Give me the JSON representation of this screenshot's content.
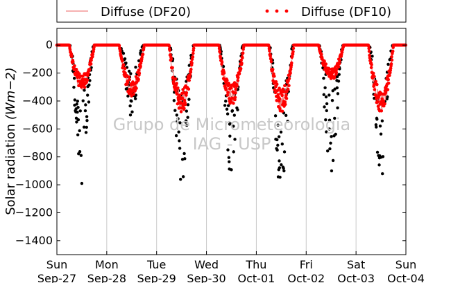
{
  "chart_data": {
    "type": "line",
    "ylabel": "Solar radiation ",
    "ylabel_math": "(Wm−2)",
    "ylim": [
      -1500,
      120
    ],
    "yticks": [
      0,
      -200,
      -400,
      -600,
      -800,
      -1000,
      -1200,
      -1400
    ],
    "ytick_labels": [
      "0",
      "−200",
      "−400",
      "−600",
      "−800",
      "−1000",
      "−1200",
      "−1400"
    ],
    "xlim_days": [
      0,
      7
    ],
    "xtick_days": [
      0,
      1,
      2,
      3,
      4,
      5,
      6,
      7
    ],
    "xtick_labels_top": [
      "Sun",
      "Mon",
      "Tue",
      "Wed",
      "Thu",
      "Fri",
      "Sat",
      "Sun"
    ],
    "xtick_labels_bottom": [
      "Sep-27",
      "Sep-28",
      "Sep-29",
      "Sep-30",
      "Oct-01",
      "Oct-02",
      "Oct-03",
      "Oct-04"
    ],
    "grid": "vertical",
    "legend_position": "top",
    "series": [
      {
        "name": "Diffuse (DF20)",
        "style": "line",
        "color": "#f08080"
      },
      {
        "name": "Diffuse (DF10)",
        "style": "dots",
        "color": "#ff0000"
      }
    ],
    "watermark": [
      "Grupo de Micrometeorologia",
      "IAG - USP"
    ],
    "daily_profile": [
      {
        "day": 0,
        "diffuse_peak": -280,
        "total_peak": -990
      },
      {
        "day": 1,
        "diffuse_peak": -320,
        "total_peak": -500
      },
      {
        "day": 2,
        "diffuse_peak": -420,
        "total_peak": -1005
      },
      {
        "day": 3,
        "diffuse_peak": -380,
        "total_peak": -940
      },
      {
        "day": 4,
        "diffuse_peak": -420,
        "total_peak": -1020
      },
      {
        "day": 5,
        "diffuse_peak": -220,
        "total_peak": -900
      },
      {
        "day": 6,
        "diffuse_peak": -420,
        "total_peak": -930
      }
    ],
    "colors": {
      "total_points": "#000000",
      "diffuse_points": "#ff0000",
      "diffuse_line": "#f08080",
      "grid": "#c8c8c8"
    }
  }
}
